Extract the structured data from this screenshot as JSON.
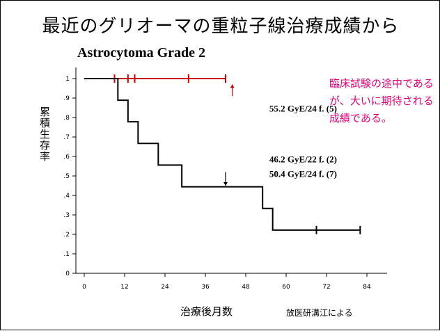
{
  "title": "最近のグリオーマの重粒子線治療成績から",
  "chart_data": {
    "type": "line",
    "title": "Astrocytoma Grade 2",
    "xlabel": "治療後月数",
    "ylabel": "累積生存率",
    "xlim": [
      0,
      90
    ],
    "ylim": [
      0,
      1.05
    ],
    "xticks": [
      0,
      12,
      24,
      36,
      48,
      60,
      72,
      84
    ],
    "xtick_labels": [
      "0",
      "12",
      "24",
      "36",
      "48",
      "60",
      "72",
      "84"
    ],
    "yticks": [
      0,
      0.1,
      0.2,
      0.3,
      0.4,
      0.5,
      0.6,
      0.7,
      0.8,
      0.9,
      1.0
    ],
    "ytick_labels": [
      "0",
      ".1",
      ".2",
      ".3",
      ".4",
      ".5",
      ".6",
      ".7",
      ".8",
      ".9",
      "1"
    ],
    "grid": false,
    "series": [
      {
        "color": "#cc0000",
        "step": [
          [
            0,
            1.0
          ],
          [
            42,
            1.0
          ]
        ],
        "censored": [
          [
            9,
            1.0
          ],
          [
            13,
            1.0
          ],
          [
            15,
            1.0
          ],
          [
            31,
            1.0
          ],
          [
            42,
            1.0
          ]
        ]
      },
      {
        "color": "#000000",
        "step": [
          [
            0,
            1.0
          ],
          [
            10,
            1.0
          ],
          [
            10,
            0.889
          ],
          [
            13,
            0.889
          ],
          [
            13,
            0.778
          ],
          [
            16,
            0.778
          ],
          [
            16,
            0.667
          ],
          [
            22,
            0.667
          ],
          [
            22,
            0.556
          ],
          [
            29,
            0.556
          ],
          [
            29,
            0.444
          ],
          [
            53,
            0.444
          ],
          [
            53,
            0.333
          ],
          [
            56,
            0.333
          ],
          [
            56,
            0.222
          ],
          [
            82,
            0.222
          ]
        ],
        "censored": [
          [
            69,
            0.222
          ],
          [
            82,
            0.222
          ]
        ]
      }
    ],
    "annotations": [
      {
        "text": "55.2 GyE/24 f. (5)",
        "x": 55,
        "y": 0.83,
        "color": "#000000"
      },
      {
        "text": "46.2 GyE/22 f. (2)",
        "x": 55,
        "y": 0.57,
        "color": "#000000"
      },
      {
        "text": "50.4 GyE/24 f. (7)",
        "x": 55,
        "y": 0.495,
        "color": "#000000"
      }
    ],
    "arrows": [
      {
        "x": 44,
        "y_from": 0.91,
        "y_to": 0.97,
        "color": "#cc0000"
      },
      {
        "x": 42,
        "y_from": 0.52,
        "y_to": 0.45,
        "color": "#000000"
      }
    ]
  },
  "note": "臨床試験の途中であるが、大いに期待される成績である。",
  "credit": "放医研溝江による"
}
